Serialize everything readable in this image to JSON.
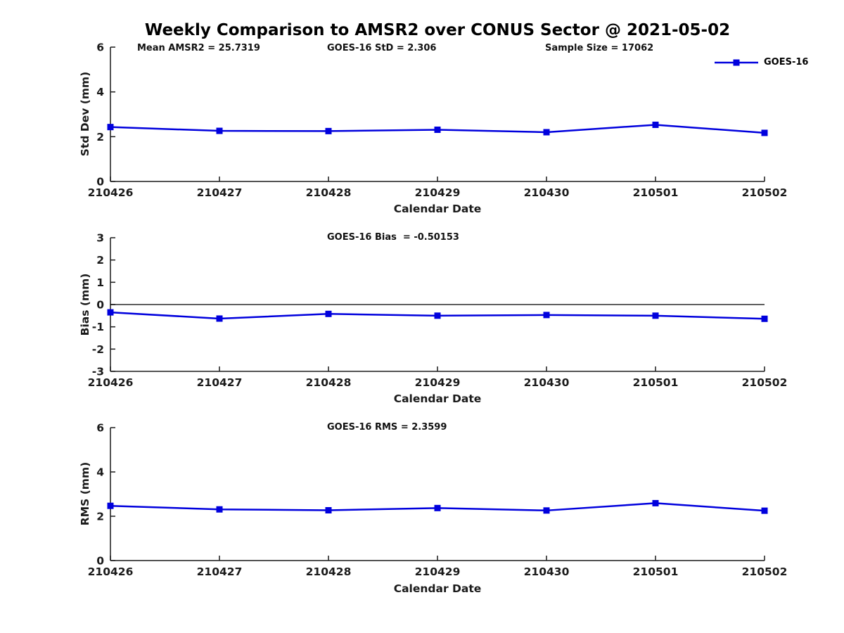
{
  "title": "Weekly Comparison to AMSR2 over CONUS Sector @ 2021-05-02",
  "legend": {
    "label": "GOES-16",
    "marker": "filled-square",
    "color": "#0000DD"
  },
  "axis_color": "#1a1a1a",
  "chart_data": [
    {
      "id": "stddev",
      "type": "line",
      "annotations": [
        "Mean AMSR2 = 25.7319",
        "GOES-16 StD = 2.306",
        "Sample Size = 17062"
      ],
      "categories": [
        "210426",
        "210427",
        "210428",
        "210429",
        "210430",
        "210501",
        "210502"
      ],
      "series": [
        {
          "name": "GOES-16",
          "values": [
            2.43,
            2.26,
            2.25,
            2.31,
            2.2,
            2.53,
            2.17
          ]
        }
      ],
      "xlabel": "Calendar Date",
      "ylabel": "Std Dev (mm)",
      "ylim": [
        0,
        6
      ],
      "yticks": [
        0,
        2,
        4,
        6
      ],
      "grid": false,
      "zero_line": false,
      "legend_position": "top-right-outside"
    },
    {
      "id": "bias",
      "type": "line",
      "annotations": [
        "GOES-16 Bias  = -0.50153"
      ],
      "categories": [
        "210426",
        "210427",
        "210428",
        "210429",
        "210430",
        "210501",
        "210502"
      ],
      "series": [
        {
          "name": "GOES-16",
          "values": [
            -0.35,
            -0.63,
            -0.42,
            -0.5,
            -0.47,
            -0.5,
            -0.64
          ]
        }
      ],
      "xlabel": "Calendar Date",
      "ylabel": "Bias (mm)",
      "ylim": [
        -3,
        3
      ],
      "yticks": [
        3,
        2,
        1,
        0,
        -1,
        -2,
        -3
      ],
      "grid": false,
      "zero_line": true,
      "legend_position": "none"
    },
    {
      "id": "rms",
      "type": "line",
      "annotations": [
        "GOES-16 RMS = 2.3599"
      ],
      "categories": [
        "210426",
        "210427",
        "210428",
        "210429",
        "210430",
        "210501",
        "210502"
      ],
      "series": [
        {
          "name": "GOES-16",
          "values": [
            2.47,
            2.31,
            2.27,
            2.37,
            2.26,
            2.59,
            2.25
          ]
        }
      ],
      "xlabel": "Calendar Date",
      "ylabel": "RMS (mm)",
      "ylim": [
        0,
        6
      ],
      "yticks": [
        0,
        2,
        4,
        6
      ],
      "grid": false,
      "zero_line": false,
      "legend_position": "none"
    }
  ]
}
